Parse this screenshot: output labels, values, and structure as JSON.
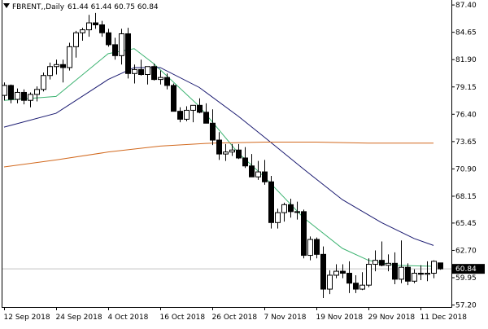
{
  "header": {
    "symbol_timeframe": "FBRENT,,Daily",
    "quote": "61.44 61.44 60.75 60.84"
  },
  "colors": {
    "ma_fast": "#3cb371",
    "ma_mid": "#191970",
    "ma_slow": "#d2691e",
    "candle_bull": "#ffffff",
    "candle_bear": "#000000",
    "current_price_label_bg": "#000000",
    "current_price_label_text": "#ffffff"
  },
  "icons": {
    "collapse_indicator": "triangle-down-icon"
  },
  "chart_data": {
    "type": "candlestick",
    "title": "FBRENT,,Daily",
    "ylim": [
      57.0,
      87.9
    ],
    "y_ticks": [
      "87.40",
      "84.65",
      "81.90",
      "79.15",
      "76.40",
      "73.65",
      "70.90",
      "68.15",
      "65.45",
      "62.70",
      "59.95",
      "57.20"
    ],
    "x_ticks": [
      {
        "label": "12 Sep 2018",
        "index": 0
      },
      {
        "label": "24 Sep 2018",
        "index": 8
      },
      {
        "label": "4 Oct 2018",
        "index": 16
      },
      {
        "label": "16 Oct 2018",
        "index": 24
      },
      {
        "label": "26 Oct 2018",
        "index": 32
      },
      {
        "label": "7 Nov 2018",
        "index": 40
      },
      {
        "label": "19 Nov 2018",
        "index": 48
      },
      {
        "label": "29 Nov 2018",
        "index": 56
      },
      {
        "label": "11 Dec 2018",
        "index": 64
      }
    ],
    "current_price": "60.84",
    "candles": [
      [
        78.3,
        79.6,
        77.8,
        79.3
      ],
      [
        79.3,
        79.4,
        77.5,
        77.9
      ],
      [
        77.9,
        79.0,
        77.5,
        78.6
      ],
      [
        78.6,
        78.9,
        77.4,
        77.8
      ],
      [
        77.8,
        78.6,
        77.1,
        78.4
      ],
      [
        78.4,
        79.2,
        77.7,
        78.9
      ],
      [
        78.9,
        80.6,
        78.7,
        80.3
      ],
      [
        80.3,
        81.6,
        79.9,
        81.2
      ],
      [
        81.2,
        81.9,
        80.4,
        81.4
      ],
      [
        81.4,
        81.9,
        79.6,
        81.1
      ],
      [
        81.1,
        83.6,
        80.8,
        83.2
      ],
      [
        83.2,
        84.8,
        82.1,
        84.6
      ],
      [
        84.6,
        85.1,
        83.8,
        84.9
      ],
      [
        84.9,
        86.4,
        84.2,
        85.6
      ],
      [
        85.6,
        86.6,
        85.0,
        85.4
      ],
      [
        85.4,
        85.8,
        84.2,
        84.6
      ],
      [
        84.6,
        85.0,
        83.2,
        83.4
      ],
      [
        83.4,
        84.1,
        81.9,
        82.3
      ],
      [
        82.3,
        85.0,
        81.4,
        84.5
      ],
      [
        84.5,
        85.1,
        80.0,
        80.5
      ],
      [
        80.5,
        81.4,
        79.5,
        80.9
      ],
      [
        80.9,
        81.9,
        80.3,
        80.4
      ],
      [
        80.4,
        81.0,
        79.4,
        81.2
      ],
      [
        81.2,
        81.5,
        79.8,
        79.9
      ],
      [
        79.9,
        80.8,
        79.4,
        80.1
      ],
      [
        80.1,
        80.5,
        78.9,
        79.3
      ],
      [
        79.3,
        79.5,
        76.7,
        76.7
      ],
      [
        76.7,
        77.1,
        75.6,
        75.9
      ],
      [
        75.9,
        77.2,
        75.7,
        76.8
      ],
      [
        76.8,
        77.2,
        75.6,
        77.3
      ],
      [
        77.3,
        78.0,
        76.5,
        76.6
      ],
      [
        76.6,
        77.5,
        75.8,
        75.5
      ],
      [
        75.5,
        76.9,
        73.3,
        73.8
      ],
      [
        73.8,
        74.6,
        71.8,
        72.4
      ],
      [
        72.4,
        73.4,
        71.7,
        72.6
      ],
      [
        72.6,
        73.4,
        72.2,
        72.8
      ],
      [
        72.8,
        73.4,
        71.9,
        72.0
      ],
      [
        72.0,
        73.1,
        71.0,
        71.2
      ],
      [
        71.2,
        72.4,
        70.2,
        70.1
      ],
      [
        70.1,
        71.7,
        69.8,
        70.6
      ],
      [
        70.6,
        71.8,
        69.3,
        69.6
      ],
      [
        69.6,
        70.2,
        64.9,
        65.5
      ],
      [
        65.5,
        66.9,
        64.9,
        66.5
      ],
      [
        66.5,
        67.5,
        65.6,
        67.3
      ],
      [
        67.3,
        67.9,
        66.0,
        66.6
      ],
      [
        66.6,
        67.6,
        65.8,
        66.6
      ],
      [
        66.6,
        66.8,
        61.9,
        62.2
      ],
      [
        62.2,
        64.1,
        61.7,
        63.8
      ],
      [
        63.8,
        64.0,
        61.9,
        62.3
      ],
      [
        62.3,
        63.1,
        57.9,
        58.8
      ],
      [
        58.8,
        60.7,
        58.3,
        60.2
      ],
      [
        60.2,
        61.3,
        59.9,
        60.6
      ],
      [
        60.6,
        61.3,
        59.9,
        60.4
      ],
      [
        60.4,
        61.6,
        58.4,
        59.4
      ],
      [
        59.4,
        60.2,
        58.4,
        58.8
      ],
      [
        58.8,
        60.5,
        58.7,
        59.2
      ],
      [
        59.2,
        61.9,
        59.0,
        61.3
      ],
      [
        61.3,
        62.7,
        60.6,
        61.7
      ],
      [
        61.7,
        63.6,
        61.1,
        61.2
      ],
      [
        61.2,
        62.3,
        60.6,
        61.4
      ],
      [
        61.4,
        62.5,
        59.3,
        59.8
      ],
      [
        59.8,
        63.7,
        59.4,
        61.0
      ],
      [
        61.0,
        61.4,
        59.2,
        59.6
      ],
      [
        59.6,
        60.8,
        59.4,
        60.4
      ],
      [
        60.4,
        61.2,
        59.7,
        60.3
      ],
      [
        60.3,
        61.6,
        59.6,
        60.4
      ],
      [
        60.4,
        61.7,
        59.9,
        61.6
      ],
      [
        61.44,
        61.44,
        60.75,
        60.84
      ]
    ],
    "series": [
      {
        "x": [
          0,
          8,
          16,
          20,
          23,
          30,
          36,
          40,
          46,
          52,
          56,
          60,
          66
        ],
        "values": [
          77.8,
          78.2,
          82.5,
          83.0,
          81.5,
          77.2,
          72.5,
          70.1,
          66.0,
          62.9,
          61.7,
          61.2,
          61.1
        ]
      },
      {
        "x": [
          0,
          8,
          16,
          20,
          24,
          30,
          36,
          40,
          46,
          52,
          58,
          63,
          66
        ],
        "values": [
          75.1,
          76.5,
          79.9,
          81.1,
          81.1,
          79.1,
          76.2,
          74.1,
          70.9,
          67.8,
          65.5,
          63.9,
          63.2
        ]
      },
      {
        "x": [
          0,
          8,
          16,
          24,
          32,
          40,
          48,
          56,
          66
        ],
        "values": [
          71.1,
          71.8,
          72.6,
          73.2,
          73.5,
          73.6,
          73.6,
          73.5,
          73.5
        ]
      }
    ]
  }
}
